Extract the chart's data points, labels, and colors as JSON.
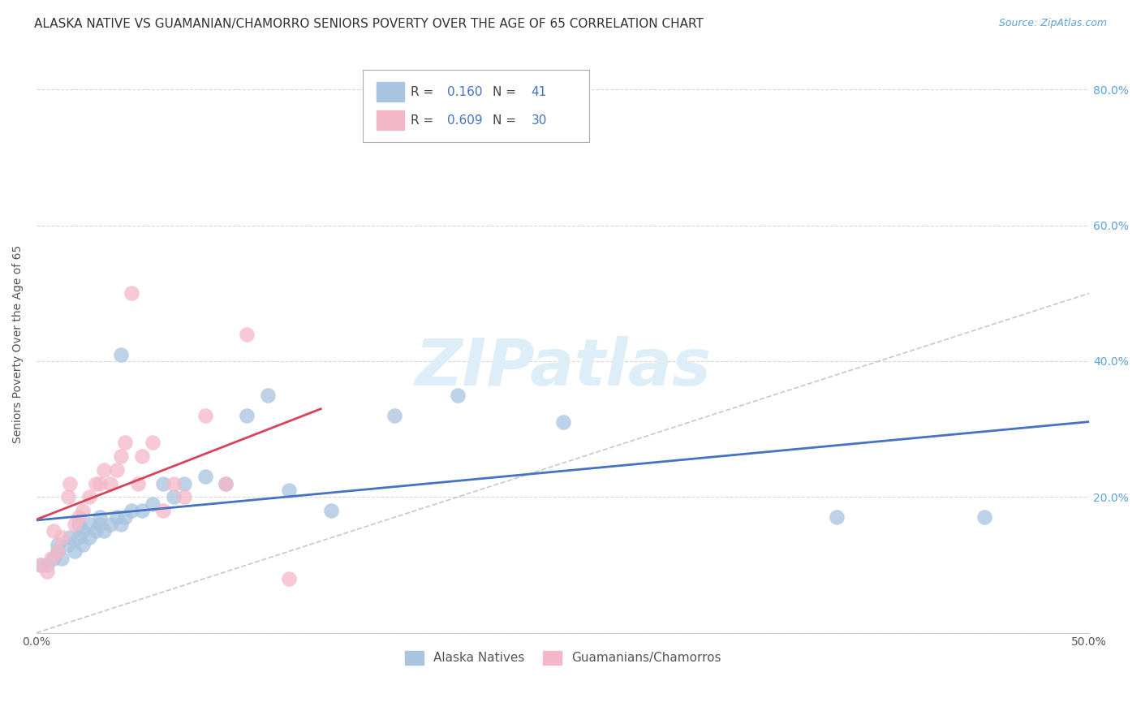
{
  "title": "ALASKA NATIVE VS GUAMANIAN/CHAMORRO SENIORS POVERTY OVER THE AGE OF 65 CORRELATION CHART",
  "source": "Source: ZipAtlas.com",
  "ylabel": "Seniors Poverty Over the Age of 65",
  "xlim": [
    0.0,
    0.5
  ],
  "ylim": [
    0.0,
    0.85
  ],
  "R_blue": 0.16,
  "N_blue": 41,
  "R_pink": 0.609,
  "N_pink": 30,
  "blue_scatter_color": "#a8c4e0",
  "pink_scatter_color": "#f4b8c8",
  "blue_line_color": "#4472c4",
  "pink_line_color": "#d9435a",
  "diagonal_color": "#c8c8c8",
  "watermark_color": "#ddeef8",
  "legend_label_blue": "Alaska Natives",
  "legend_label_pink": "Guamanians/Chamorros",
  "alaska_x": [
    0.002,
    0.005,
    0.008,
    0.01,
    0.01,
    0.012,
    0.015,
    0.016,
    0.018,
    0.02,
    0.02,
    0.022,
    0.022,
    0.025,
    0.025,
    0.028,
    0.03,
    0.03,
    0.032,
    0.035,
    0.038,
    0.04,
    0.04,
    0.042,
    0.045,
    0.05,
    0.055,
    0.06,
    0.065,
    0.07,
    0.08,
    0.09,
    0.1,
    0.11,
    0.12,
    0.14,
    0.17,
    0.2,
    0.25,
    0.38,
    0.45
  ],
  "alaska_y": [
    0.1,
    0.1,
    0.11,
    0.12,
    0.13,
    0.11,
    0.13,
    0.14,
    0.12,
    0.14,
    0.16,
    0.13,
    0.15,
    0.14,
    0.16,
    0.15,
    0.16,
    0.17,
    0.15,
    0.16,
    0.17,
    0.16,
    0.41,
    0.17,
    0.18,
    0.18,
    0.19,
    0.22,
    0.2,
    0.22,
    0.23,
    0.22,
    0.32,
    0.35,
    0.21,
    0.18,
    0.32,
    0.35,
    0.31,
    0.17,
    0.17
  ],
  "guam_x": [
    0.002,
    0.005,
    0.007,
    0.008,
    0.01,
    0.012,
    0.015,
    0.016,
    0.018,
    0.02,
    0.022,
    0.025,
    0.028,
    0.03,
    0.032,
    0.035,
    0.038,
    0.04,
    0.042,
    0.045,
    0.048,
    0.05,
    0.055,
    0.06,
    0.065,
    0.07,
    0.08,
    0.09,
    0.1,
    0.12
  ],
  "guam_y": [
    0.1,
    0.09,
    0.11,
    0.15,
    0.12,
    0.14,
    0.2,
    0.22,
    0.16,
    0.17,
    0.18,
    0.2,
    0.22,
    0.22,
    0.24,
    0.22,
    0.24,
    0.26,
    0.28,
    0.5,
    0.22,
    0.26,
    0.28,
    0.18,
    0.22,
    0.2,
    0.32,
    0.22,
    0.44,
    0.08
  ],
  "title_fontsize": 11,
  "source_fontsize": 9,
  "axis_label_fontsize": 10,
  "tick_fontsize": 10,
  "legend_fontsize": 11
}
